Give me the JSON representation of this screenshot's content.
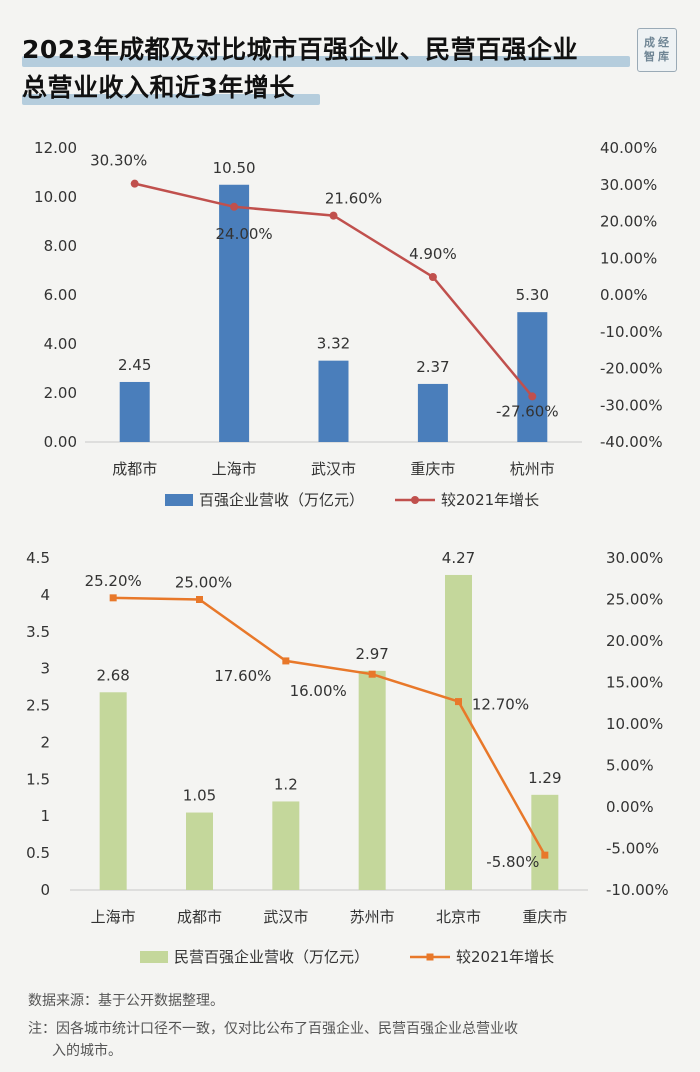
{
  "header": {
    "title_line1": "2023年成都及对比城市百强企业、民营百强企业",
    "title_line2": "总营业收入和近3年增长",
    "logo_chars": [
      "成",
      "经",
      "智",
      "库"
    ]
  },
  "colors": {
    "bar1": "#4a7ebb",
    "line1": "#c0504d",
    "bar2": "#c4d79b",
    "line2": "#e8782a",
    "title_highlight": "#a9c6d9"
  },
  "chart_data": [
    {
      "type": "bar",
      "categories": [
        "成都市",
        "上海市",
        "武汉市",
        "重庆市",
        "杭州市"
      ],
      "series": [
        {
          "name": "百强企业营收（万亿元）",
          "type": "bar",
          "axis": "left",
          "values": [
            2.45,
            10.5,
            3.32,
            2.37,
            5.3
          ],
          "labels": [
            "2.45",
            "10.50",
            "3.32",
            "2.37",
            "5.30"
          ]
        },
        {
          "name": "较2021年增长",
          "type": "line",
          "axis": "right",
          "values": [
            30.3,
            24.0,
            21.6,
            4.9,
            -27.6
          ],
          "labels": [
            "30.30%",
            "24.00%",
            "21.60%",
            "4.90%",
            "-27.60%"
          ]
        }
      ],
      "y_left": {
        "range": [
          0,
          12
        ],
        "ticks": [
          "0.00",
          "2.00",
          "4.00",
          "6.00",
          "8.00",
          "10.00",
          "12.00"
        ]
      },
      "y_right": {
        "range": [
          -40,
          40
        ],
        "ticks": [
          "-40.00%",
          "-30.00%",
          "-20.00%",
          "-10.00%",
          "0.00%",
          "10.00%",
          "20.00%",
          "30.00%",
          "40.00%"
        ]
      },
      "legend_position": "bottom"
    },
    {
      "type": "bar",
      "categories": [
        "上海市",
        "成都市",
        "武汉市",
        "苏州市",
        "北京市",
        "重庆市"
      ],
      "series": [
        {
          "name": "民营百强企业营收（万亿元）",
          "type": "bar",
          "axis": "left",
          "values": [
            2.68,
            1.05,
            1.2,
            2.97,
            4.27,
            1.29
          ],
          "labels": [
            "2.68",
            "1.05",
            "1.2",
            "2.97",
            "4.27",
            "1.29"
          ]
        },
        {
          "name": "较2021年增长",
          "type": "line",
          "axis": "right",
          "values": [
            25.2,
            25.0,
            17.6,
            16.0,
            12.7,
            -5.8
          ],
          "labels": [
            "25.20%",
            "25.00%",
            "17.60%",
            "16.00%",
            "12.70%",
            "-5.80%"
          ]
        }
      ],
      "y_left": {
        "range": [
          0,
          4.5
        ],
        "ticks": [
          "0",
          "0.5",
          "1",
          "1.5",
          "2",
          "2.5",
          "3",
          "3.5",
          "4",
          "4.5"
        ]
      },
      "y_right": {
        "range": [
          -10,
          30
        ],
        "ticks": [
          "-10.00%",
          "-5.00%",
          "0.00%",
          "5.00%",
          "10.00%",
          "15.00%",
          "20.00%",
          "25.00%",
          "30.00%"
        ]
      },
      "legend_position": "bottom"
    }
  ],
  "notes": {
    "source": "数据来源：基于公开数据整理。",
    "footnote_line1": "注：因各城市统计口径不一致，仅对比公布了百强企业、民营百强企业总营业收",
    "footnote_line2": "入的城市。"
  }
}
